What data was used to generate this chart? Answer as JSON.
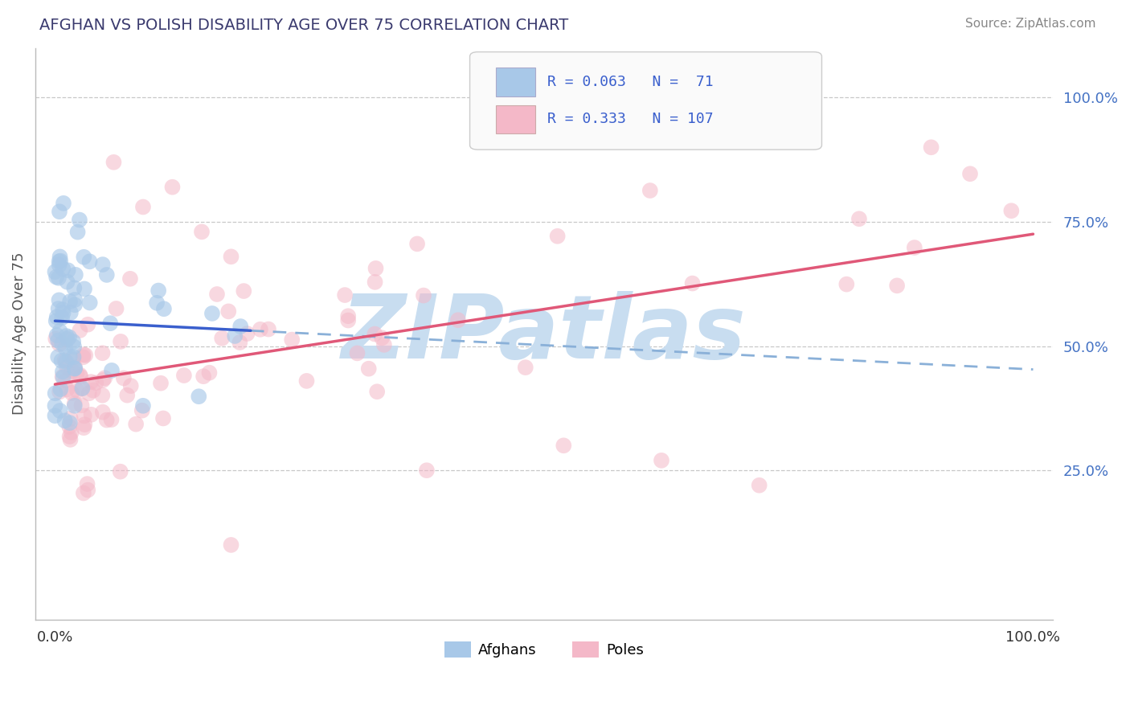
{
  "title": "AFGHAN VS POLISH DISABILITY AGE OVER 75 CORRELATION CHART",
  "source": "Source: ZipAtlas.com",
  "ylabel": "Disability Age Over 75",
  "xlim": [
    -0.02,
    1.02
  ],
  "ylim": [
    -0.05,
    1.1
  ],
  "yticks": [
    0.25,
    0.5,
    0.75,
    1.0
  ],
  "ytick_labels": [
    "25.0%",
    "50.0%",
    "75.0%",
    "100.0%"
  ],
  "xtick_labels": [
    "0.0%",
    "100.0%"
  ],
  "blue_scatter_color": "#a8c8e8",
  "pink_scatter_color": "#f4b8c8",
  "blue_line_color": "#3a5fcd",
  "pink_line_color": "#e05878",
  "blue_dash_color": "#8ab0d8",
  "watermark": "ZIPatlas",
  "watermark_color": "#c8ddf0",
  "background_color": "#ffffff",
  "grid_color": "#c8c8c8",
  "title_color": "#3a3a6e",
  "source_color": "#888888",
  "tick_color": "#4472c4",
  "label_color": "#555555"
}
